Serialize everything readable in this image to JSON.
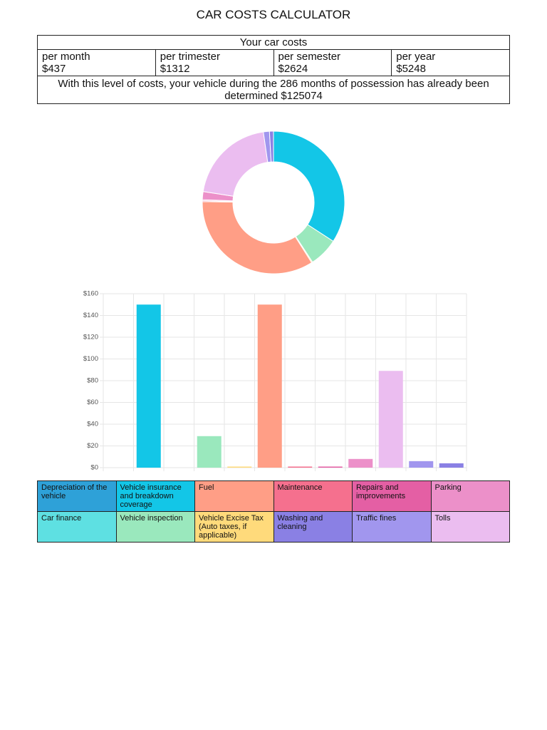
{
  "header": {
    "title": "CAR COSTS CALCULATOR"
  },
  "costs": {
    "title": "Your car costs",
    "periods": [
      {
        "label": "per month",
        "amount": "$437"
      },
      {
        "label": "per trimester",
        "amount": "$1312"
      },
      {
        "label": "per semester",
        "amount": "$2624"
      },
      {
        "label": "per year",
        "amount": "$5248"
      }
    ],
    "note": "With this level of costs, your vehicle during the 286 months of possession has already been determined $125074"
  },
  "chart_data": [
    {
      "type": "doughnut",
      "values": [
        0,
        150,
        0,
        29,
        1,
        150,
        1,
        1,
        8,
        89,
        6,
        4
      ],
      "colors": [
        "#2ea1d8",
        "#13c6e7",
        "#5ee0e2",
        "#9ae8bd",
        "#ffda7b",
        "#ff9e86",
        "#f5708e",
        "#e45fa4",
        "#ec90c9",
        "#ebbdf0",
        "#a196ee",
        "#8a80e4"
      ]
    },
    {
      "type": "bar",
      "categories": [
        null,
        null,
        null,
        null,
        null,
        null,
        null,
        null,
        null,
        null,
        null,
        null
      ],
      "values": [
        0,
        150,
        0,
        29,
        1,
        150,
        1,
        1,
        8,
        89,
        6,
        4
      ],
      "colors": [
        "#2ea1d8",
        "#13c6e7",
        "#5ee0e2",
        "#9ae8bd",
        "#ffda7b",
        "#ff9e86",
        "#f5708e",
        "#e45fa4",
        "#ec90c9",
        "#ebbdf0",
        "#a196ee",
        "#8a80e4"
      ],
      "ylim": [
        0,
        160
      ],
      "yticks": [
        {
          "value": 0,
          "label": "$0"
        },
        {
          "value": 20,
          "label": "$20"
        },
        {
          "value": 40,
          "label": "$40"
        },
        {
          "value": 60,
          "label": "$60"
        },
        {
          "value": 80,
          "label": "$80"
        },
        {
          "value": 100,
          "label": "$100"
        },
        {
          "value": 120,
          "label": "$120"
        },
        {
          "value": 140,
          "label": "$140"
        },
        {
          "value": 160,
          "label": "$160"
        }
      ],
      "grid": true
    }
  ],
  "legend": {
    "rows": [
      [
        {
          "label": "Depreciation of the vehicle",
          "color": "#2ea1d8"
        },
        {
          "label": "Vehicle insurance and breakdown coverage",
          "color": "#13c6e7"
        },
        {
          "label": "Fuel",
          "color": "#ff9e86"
        },
        {
          "label": "Maintenance",
          "color": "#f5708e"
        },
        {
          "label": "Repairs and improvements",
          "color": "#e45fa4"
        },
        {
          "label": "Parking",
          "color": "#ec90c9"
        }
      ],
      [
        {
          "label": "Car finance",
          "color": "#5ee0e2"
        },
        {
          "label": "Vehicle inspection",
          "color": "#9ae8bd"
        },
        {
          "label": "Vehicle Excise Tax (Auto taxes, if applicable)",
          "color": "#ffda7b"
        },
        {
          "label": "Washing and cleaning",
          "color": "#8a80e4"
        },
        {
          "label": "Traffic fines",
          "color": "#a196ee"
        },
        {
          "label": "Tolls",
          "color": "#ebbdf0"
        }
      ]
    ]
  }
}
